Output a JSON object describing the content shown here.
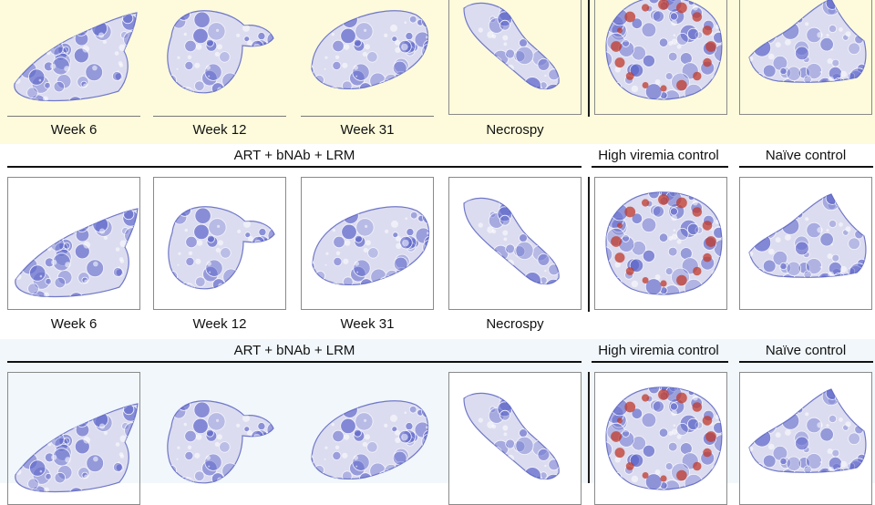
{
  "rows": [
    {
      "timepoints": [
        "Week 6",
        "Week 12",
        "Week 31",
        "Necrospy"
      ]
    },
    {
      "group_treatment": "ART + bNAb + LRM",
      "group_high_viremia": "High viremia control",
      "group_naive": "Naïve control",
      "timepoints": [
        "Week 6",
        "Week 12",
        "Week 31",
        "Necrospy"
      ]
    },
    {
      "group_treatment": "ART + bNAb + LRM",
      "group_high_viremia": "High viremia control",
      "group_naive": "Naïve control"
    }
  ],
  "panels": [
    {
      "id": "week-6",
      "stain": "blue"
    },
    {
      "id": "week-12",
      "stain": "blue"
    },
    {
      "id": "week-31",
      "stain": "blue"
    },
    {
      "id": "necropsy",
      "stain": "blue"
    },
    {
      "id": "high-viremia-control",
      "stain": "blue-with-red-follicles"
    },
    {
      "id": "naive-control",
      "stain": "blue"
    }
  ],
  "colors": {
    "row1_background": "#fdfbdc",
    "row3_background": "#f1f7fb",
    "stain_blue": "#5a63c8",
    "stain_red": "#c0392b"
  }
}
